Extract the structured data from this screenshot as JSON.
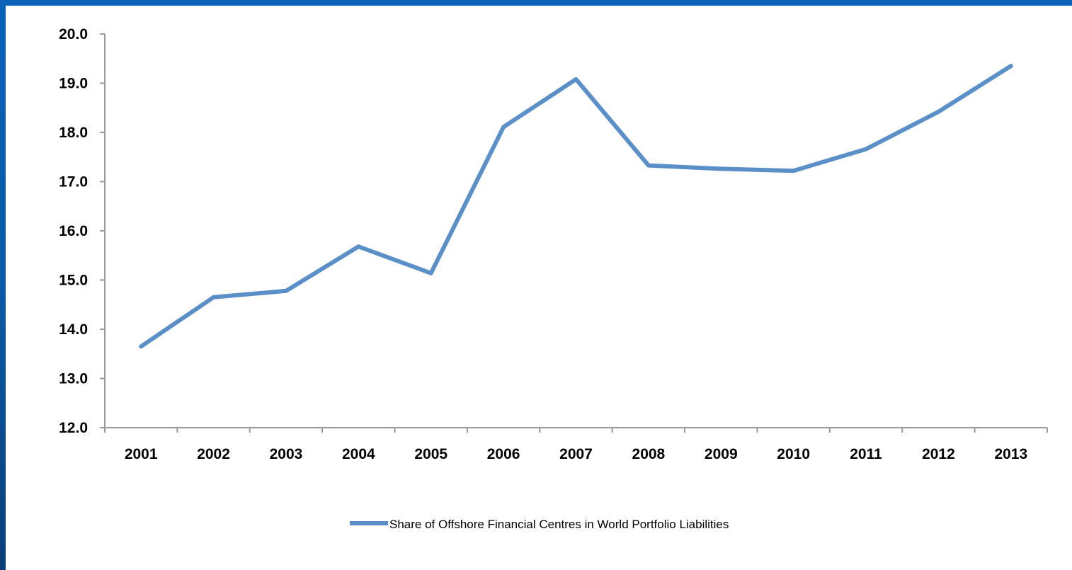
{
  "colors": {
    "frame": "#0a5fb0",
    "series": "#5b8fc8",
    "axis": "#9a9a9a",
    "background": "#ffffff"
  },
  "chart_data": {
    "type": "line",
    "title": "",
    "xlabel": "",
    "ylabel": "",
    "x": [
      "2001",
      "2002",
      "2003",
      "2004",
      "2005",
      "2006",
      "2007",
      "2008",
      "2009",
      "2010",
      "2011",
      "2012",
      "2013"
    ],
    "ylim": [
      12.0,
      20.0
    ],
    "yticks": [
      "12.0",
      "13.0",
      "14.0",
      "15.0",
      "16.0",
      "17.0",
      "18.0",
      "19.0",
      "20.0"
    ],
    "series": [
      {
        "name": "Share of Offshore Financial Centres in World Portfolio Liabilities",
        "values": [
          13.65,
          14.65,
          14.78,
          15.68,
          15.14,
          18.11,
          19.08,
          17.33,
          17.26,
          17.22,
          17.66,
          18.42,
          19.35
        ]
      }
    ],
    "grid": false,
    "legend": "bottom"
  }
}
